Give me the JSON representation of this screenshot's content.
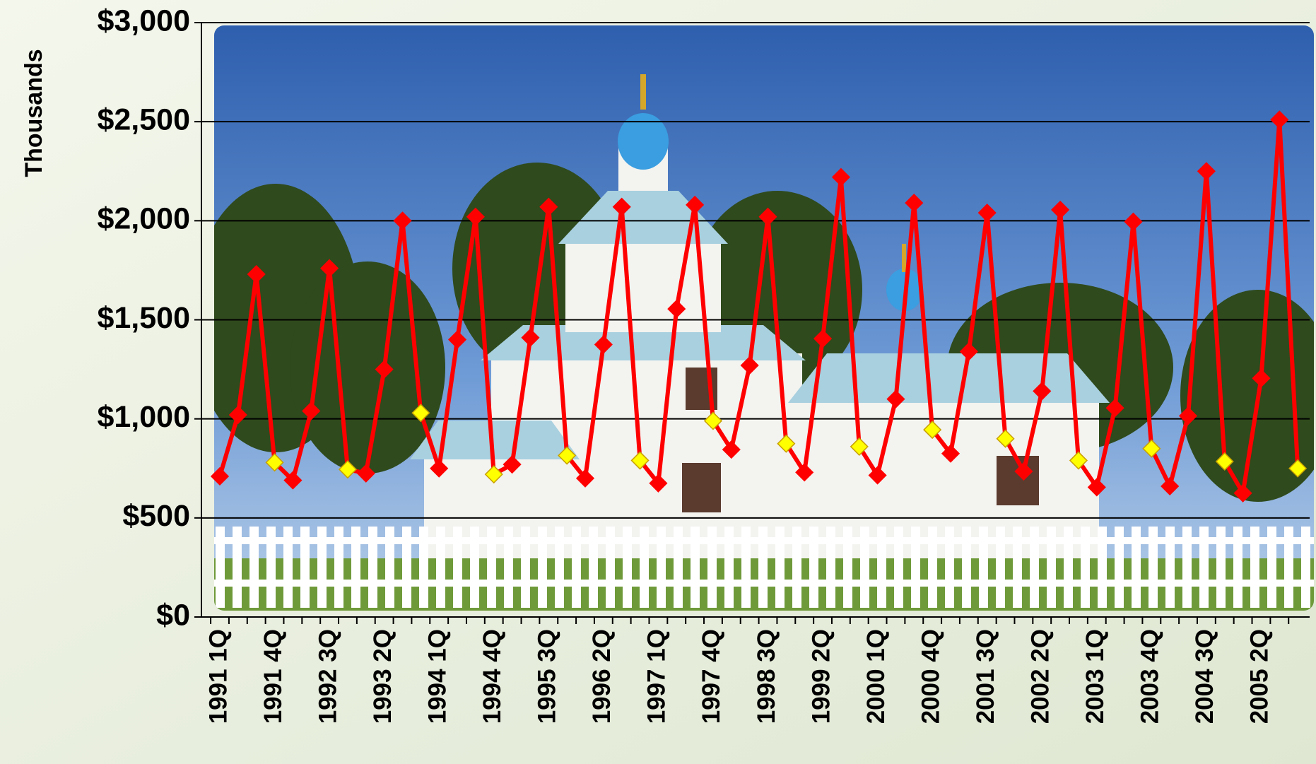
{
  "chart_data": {
    "type": "line",
    "y_label": "Thousands",
    "categories": [
      "1991 1Q",
      null,
      null,
      "1991 4Q",
      null,
      null,
      "1992 3Q",
      null,
      null,
      "1993 2Q",
      null,
      null,
      "1994 1Q",
      null,
      null,
      "1994 4Q",
      null,
      null,
      "1995 3Q",
      null,
      null,
      "1996 2Q",
      null,
      null,
      "1997 1Q",
      null,
      null,
      "1997 4Q",
      null,
      null,
      "1998 3Q",
      null,
      null,
      "1999 2Q",
      null,
      null,
      "2000 1Q",
      null,
      null,
      "2000 4Q",
      null,
      null,
      "2001 3Q",
      null,
      null,
      "2002 2Q",
      null,
      null,
      "2003 1Q",
      null,
      null,
      "2003 4Q",
      null,
      null,
      "2004 3Q",
      null,
      null,
      "2005 2Q",
      null,
      null
    ],
    "series": [
      {
        "color": "#ff0000",
        "q4_marker_color": "#ffff00",
        "values": [
          710,
          1020,
          1730,
          780,
          690,
          1040,
          1760,
          745,
          725,
          1250,
          2000,
          1030,
          750,
          1400,
          2020,
          720,
          770,
          1410,
          2070,
          815,
          700,
          1375,
          2070,
          790,
          675,
          1555,
          2080,
          990,
          845,
          1270,
          2020,
          875,
          730,
          1405,
          2220,
          860,
          715,
          1100,
          2090,
          945,
          825,
          1340,
          2040,
          900,
          735,
          1140,
          2055,
          790,
          655,
          1055,
          1995,
          850,
          660,
          1015,
          2250,
          785,
          625,
          1205,
          2510,
          750
        ]
      }
    ],
    "ylim": [
      0,
      3000
    ],
    "yticks": [
      {
        "value": 0,
        "label": "$0"
      },
      {
        "value": 500,
        "label": "$500"
      },
      {
        "value": 1000,
        "label": "$1,000"
      },
      {
        "value": 1500,
        "label": "$1,500"
      },
      {
        "value": 2000,
        "label": "$2,000"
      },
      {
        "value": 2500,
        "label": "$2,500"
      },
      {
        "value": 3000,
        "label": "$3,000"
      }
    ],
    "grid": true
  }
}
